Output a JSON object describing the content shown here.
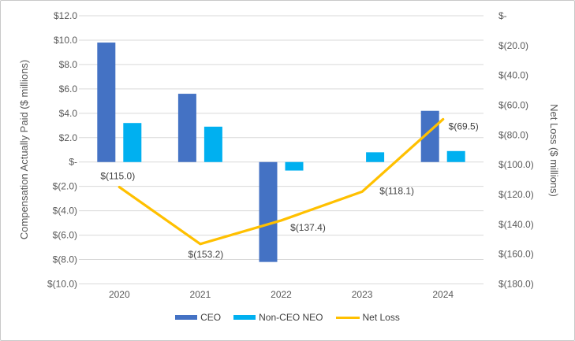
{
  "chart_data": {
    "type": "combo",
    "categories": [
      "2020",
      "2021",
      "2022",
      "2023",
      "2024"
    ],
    "series": [
      {
        "name": "CEO",
        "type": "bar",
        "axis": "left",
        "color": "#4472C4",
        "values": [
          9.8,
          5.6,
          -8.2,
          0,
          4.2
        ]
      },
      {
        "name": "Non-CEO NEO",
        "type": "bar",
        "axis": "left",
        "color": "#00B0F0",
        "values": [
          3.2,
          2.9,
          -0.7,
          0.8,
          0.9
        ]
      },
      {
        "name": "Net Loss",
        "type": "line",
        "axis": "right",
        "color": "#FFC000",
        "values": [
          -115.0,
          -153.2,
          -137.4,
          -118.1,
          -69.5
        ],
        "point_labels": [
          "$(115.0)",
          "$(153.2)",
          "$(137.4)",
          "$(118.1)",
          "$(69.5)"
        ]
      }
    ],
    "left_axis": {
      "title": "Compensation Actually Paid ($ millions)",
      "max": 12,
      "min": -10,
      "step": 2,
      "ticks": [
        "$12.0",
        "$10.0",
        "$8.0",
        "$6.0",
        "$4.0",
        "$2.0",
        "$-",
        "$(2.0)",
        "$(4.0)",
        "$(6.0)",
        "$(8.0)",
        "$(10.0)"
      ]
    },
    "right_axis": {
      "title": "Net Loss ($ millions)",
      "max": 0,
      "min": -180,
      "step": 20,
      "ticks": [
        "$-",
        "$(20.0)",
        "$(40.0)",
        "$(60.0)",
        "$(80.0)",
        "$(100.0)",
        "$(120.0)",
        "$(140.0)",
        "$(160.0)",
        "$(180.0)"
      ]
    },
    "grid": true,
    "gridline_color": "#D9D9D9",
    "legend_position": "bottom",
    "legend": [
      "CEO",
      "Non-CEO NEO",
      "Net Loss"
    ]
  }
}
